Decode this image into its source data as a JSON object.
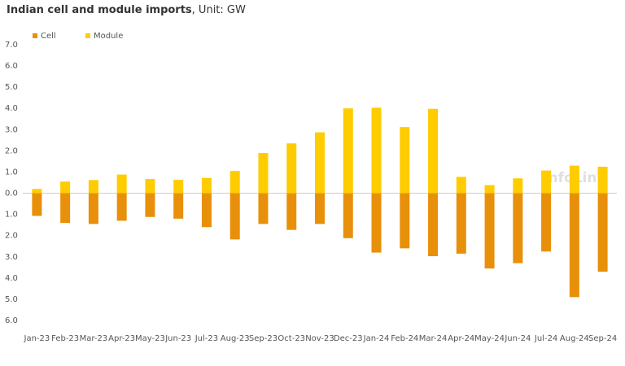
{
  "chart_data": {
    "type": "bar",
    "title": "Indian cell and module imports",
    "unit_label": ", Unit: GW",
    "watermark": "InfoLink",
    "categories": [
      "Jan-23",
      "Feb-23",
      "Mar-23",
      "Apr-23",
      "May-23",
      "Jun-23",
      "Jul-23",
      "Aug-23",
      "Sep-23",
      "Oct-23",
      "Nov-23",
      "Dec-23",
      "Jan-24",
      "Feb-24",
      "Mar-24",
      "Apr-24",
      "May-24",
      "Jun-24",
      "Jul-24",
      "Aug-24",
      "Sep-24"
    ],
    "series": [
      {
        "name": "Cell",
        "color": "#e8900a",
        "values": [
          -1.07,
          -1.4,
          -1.45,
          -1.3,
          -1.12,
          -1.2,
          -1.6,
          -2.18,
          -1.45,
          -1.73,
          -1.45,
          -2.12,
          -2.8,
          -2.6,
          -2.97,
          -2.85,
          -3.55,
          -3.3,
          -2.75,
          -4.9,
          -3.7
        ]
      },
      {
        "name": "Module",
        "color": "#ffcc00",
        "values": [
          0.2,
          0.55,
          0.62,
          0.88,
          0.67,
          0.63,
          0.72,
          1.05,
          1.9,
          2.35,
          2.87,
          4.0,
          4.03,
          3.12,
          3.98,
          0.77,
          0.38,
          0.7,
          1.07,
          1.3,
          1.25
        ]
      }
    ],
    "ylim": [
      -6,
      7
    ],
    "yticks": [
      {
        "value": 7,
        "label": "7.0"
      },
      {
        "value": 6,
        "label": "6.0"
      },
      {
        "value": 5,
        "label": "5.0"
      },
      {
        "value": 4,
        "label": "4.0"
      },
      {
        "value": 3,
        "label": "3.0"
      },
      {
        "value": 2,
        "label": "2.0"
      },
      {
        "value": 1,
        "label": "1.0"
      },
      {
        "value": 0,
        "label": "0.0"
      },
      {
        "value": -1,
        "label": "1.0"
      },
      {
        "value": -2,
        "label": "2.0"
      },
      {
        "value": -3,
        "label": "3.0"
      },
      {
        "value": -4,
        "label": "4.0"
      },
      {
        "value": -5,
        "label": "5.0"
      },
      {
        "value": -6,
        "label": "6.0"
      }
    ],
    "legend": "top-left"
  }
}
